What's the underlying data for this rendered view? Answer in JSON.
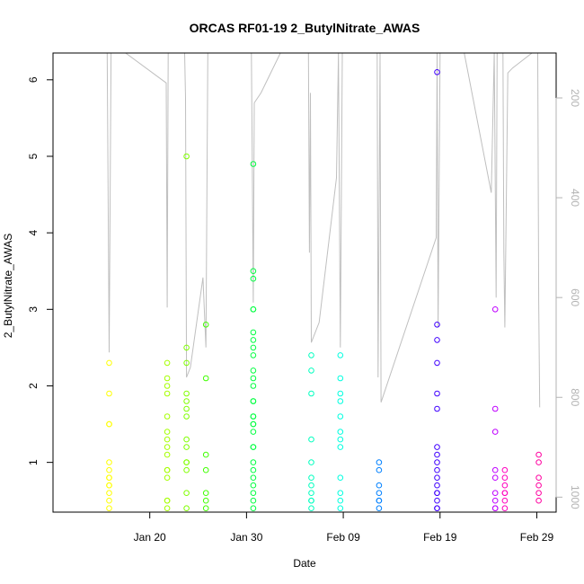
{
  "chart_data": {
    "type": "scatter",
    "title": "ORCAS RF01-19 2_ButylNitrate_AWAS",
    "xlabel": "Date",
    "ylabel": "2_ButylNitrate_AWAS",
    "x_ticks": [
      "Jan 20",
      "Jan 30",
      "Feb 09",
      "Feb 19",
      "Feb 29"
    ],
    "y_ticks": [
      "1",
      "2",
      "3",
      "4",
      "5",
      "6"
    ],
    "y_range": [
      0.35,
      6.35
    ],
    "right_axis": {
      "ticks": [
        "200",
        "400",
        "600",
        "800",
        "1000"
      ],
      "range": [
        1030,
        110
      ],
      "reversed": true,
      "color": "#b3b3b3"
    },
    "x_range_days_from_jan20": [
      -10.0,
      42.0
    ],
    "series": [
      {
        "color": "#ffff00",
        "x": -4.2,
        "values": [
          2.3,
          1.9,
          1.5,
          1.5,
          1.0,
          0.9,
          0.8,
          0.8,
          0.7,
          0.7,
          0.6,
          0.5,
          0.4
        ]
      },
      {
        "color": "#a5ff00",
        "x": 1.8,
        "values": [
          2.3,
          2.1,
          2.0,
          1.9,
          1.6,
          1.4,
          1.3,
          1.2,
          1.1,
          0.9,
          0.9,
          0.8,
          0.5,
          0.5,
          0.4
        ]
      },
      {
        "color": "#80ff00",
        "x": 3.8,
        "values": [
          5.0,
          2.5,
          2.3,
          1.9,
          1.8,
          1.7,
          1.6,
          1.3,
          1.2,
          1.0,
          1.0,
          0.9,
          0.6,
          0.4
        ]
      },
      {
        "color": "#40ff00",
        "x": 5.8,
        "values": [
          2.8,
          2.1,
          1.1,
          0.9,
          0.6,
          0.5,
          0.4
        ]
      },
      {
        "color": "#00ff40",
        "x": 10.7,
        "values": [
          4.9,
          3.5,
          3.4,
          3.0,
          3.0,
          2.7,
          2.6,
          2.5,
          2.4,
          2.2,
          2.1,
          2.0,
          1.8,
          1.8,
          1.6,
          1.6,
          1.5,
          1.5,
          1.4,
          1.2,
          1.2,
          1.0,
          0.9,
          0.8,
          0.7,
          0.6,
          0.5,
          0.4
        ]
      },
      {
        "color": "#00ffbf",
        "x": 16.7,
        "values": [
          2.4,
          2.2,
          1.9,
          1.3,
          1.0,
          0.8,
          0.7,
          0.6,
          0.5,
          0.5,
          0.4
        ]
      },
      {
        "color": "#00ffe0",
        "x": 19.7,
        "values": [
          2.4,
          2.1,
          1.9,
          1.8,
          1.6,
          1.4,
          1.3,
          1.2,
          0.8,
          0.6,
          0.5,
          0.4
        ]
      },
      {
        "color": "#0080ff",
        "x": 23.7,
        "values": [
          1.0,
          0.9,
          0.7,
          0.6,
          0.5,
          0.5,
          0.4
        ]
      },
      {
        "color": "#4000ff",
        "x": 29.7,
        "values": [
          6.1,
          2.8,
          2.6,
          2.3,
          1.9,
          1.7,
          1.2,
          1.1,
          1.0,
          0.9,
          0.8,
          0.7,
          0.6,
          0.6,
          0.5,
          0.4,
          0.4
        ]
      },
      {
        "color": "#bf00ff",
        "x": 35.7,
        "values": [
          3.0,
          1.7,
          1.4,
          0.9,
          0.8,
          0.6,
          0.5,
          0.4,
          0.4
        ]
      },
      {
        "color": "#ff00bf",
        "x": 36.7,
        "values": [
          0.9,
          0.8,
          0.7,
          0.6,
          0.6,
          0.5,
          0.4
        ]
      },
      {
        "color": "#ff00a0",
        "x": 40.2,
        "values": [
          1.1,
          1.0,
          0.8,
          0.7,
          0.6,
          0.5
        ]
      }
    ],
    "pressure_track": {
      "color": "#bfbfbf",
      "points": [
        [
          -4.4,
          110
        ],
        [
          -4.2,
          710
        ],
        [
          -4.0,
          110
        ],
        [
          -2.5,
          110
        ],
        [
          1.7,
          170
        ],
        [
          1.8,
          620
        ],
        [
          1.9,
          110
        ],
        [
          3.6,
          110
        ],
        [
          3.7,
          200
        ],
        [
          3.8,
          760
        ],
        [
          4.2,
          740
        ],
        [
          5.5,
          560
        ],
        [
          5.8,
          700
        ],
        [
          6.0,
          110
        ],
        [
          8.0,
          110
        ],
        [
          10.5,
          110
        ],
        [
          10.6,
          330
        ],
        [
          10.7,
          610
        ],
        [
          10.8,
          210
        ],
        [
          11.5,
          190
        ],
        [
          13.5,
          110
        ],
        [
          15.0,
          110
        ],
        [
          16.4,
          110
        ],
        [
          16.5,
          510
        ],
        [
          16.6,
          190
        ],
        [
          16.7,
          690
        ],
        [
          17.5,
          650
        ],
        [
          19.3,
          360
        ],
        [
          19.5,
          110
        ],
        [
          19.7,
          700
        ],
        [
          19.9,
          110
        ],
        [
          22.0,
          110
        ],
        [
          23.5,
          110
        ],
        [
          23.6,
          760
        ],
        [
          23.8,
          110
        ],
        [
          23.9,
          810
        ],
        [
          29.6,
          480
        ],
        [
          29.7,
          110
        ],
        [
          29.8,
          660
        ],
        [
          30.0,
          110
        ],
        [
          32.5,
          110
        ],
        [
          35.3,
          390
        ],
        [
          35.6,
          110
        ],
        [
          35.8,
          600
        ],
        [
          35.9,
          110
        ],
        [
          36.5,
          110
        ],
        [
          36.6,
          510
        ],
        [
          36.7,
          660
        ],
        [
          37.0,
          150
        ],
        [
          37.5,
          140
        ],
        [
          39.5,
          110
        ],
        [
          40.1,
          110
        ],
        [
          40.2,
          610
        ],
        [
          40.3,
          820
        ]
      ]
    }
  }
}
